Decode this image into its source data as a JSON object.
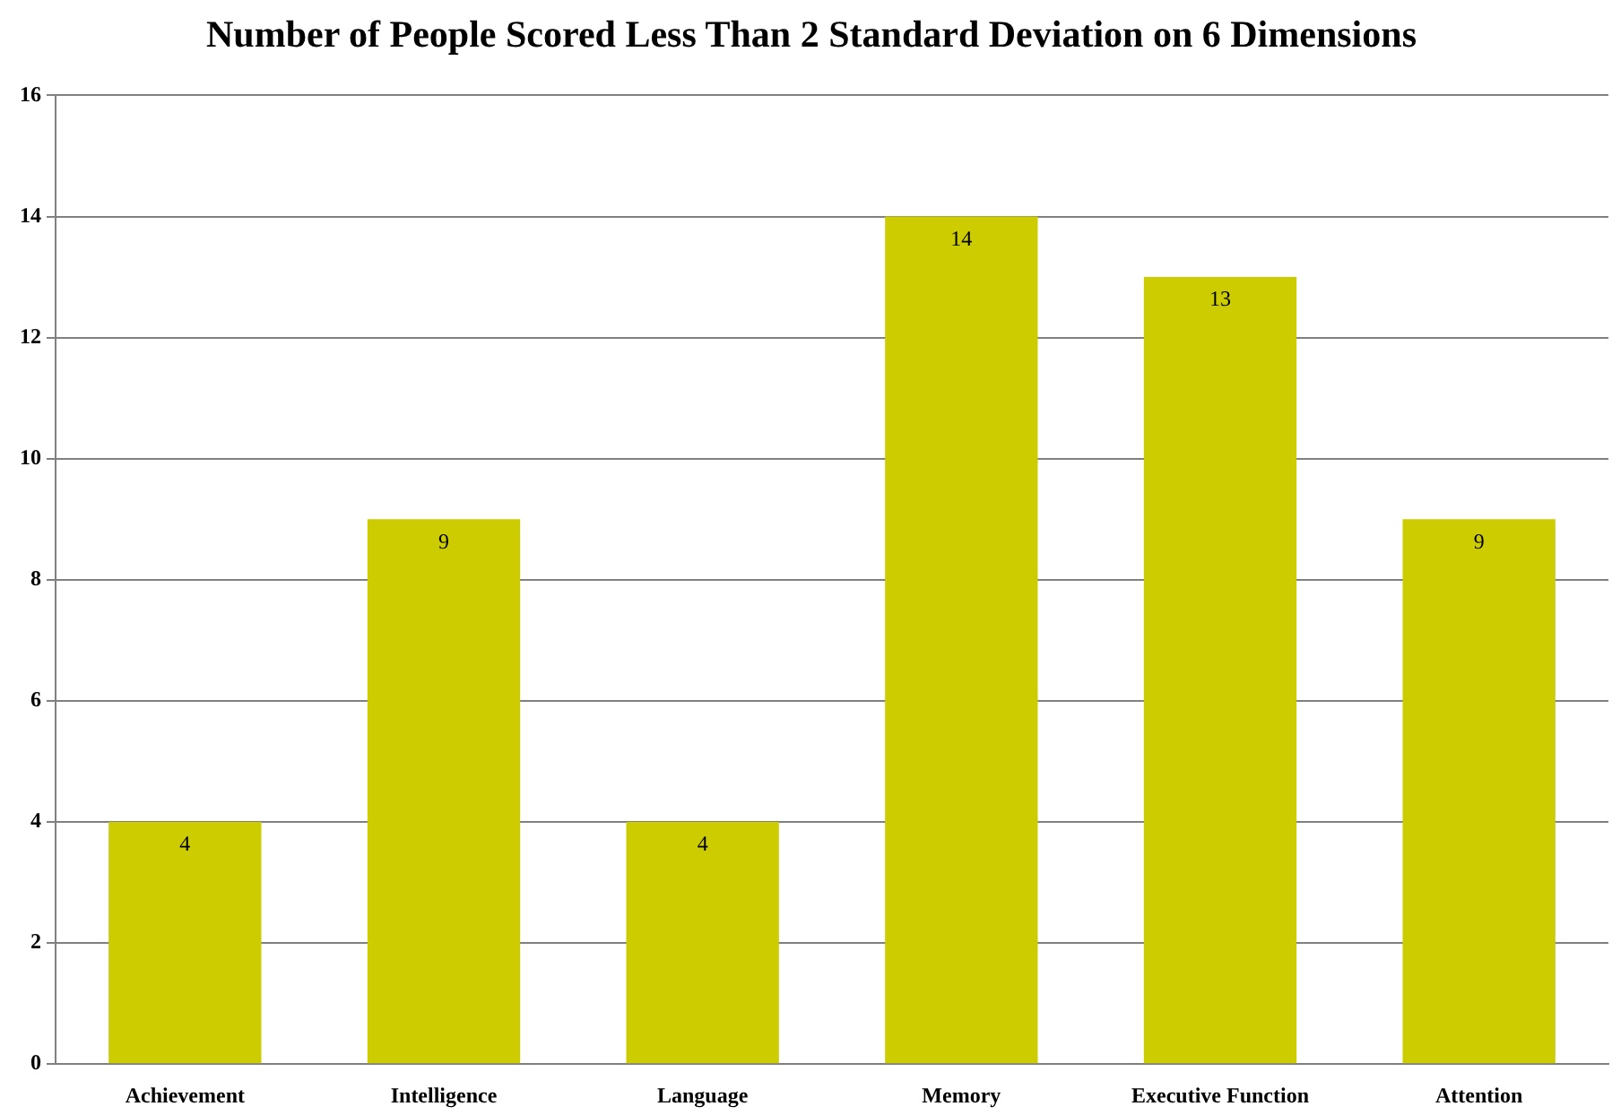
{
  "chart_data": {
    "type": "bar",
    "title": "Number of People Scored Less Than 2 Standard Deviation on 6 Dimensions",
    "categories": [
      "Achievement",
      "Intelligence",
      "Language",
      "Memory",
      "Executive Function",
      "Attention"
    ],
    "values": [
      4,
      9,
      4,
      14,
      13,
      9
    ],
    "color": "#cccc00",
    "ylim": [
      0,
      16
    ],
    "yticks": [
      0,
      2,
      4,
      6,
      8,
      10,
      12,
      14,
      16
    ],
    "grid": "y",
    "data_labels": true
  }
}
